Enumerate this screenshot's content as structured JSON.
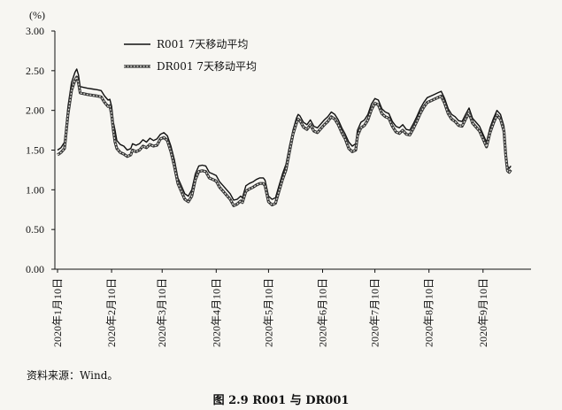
{
  "chart_data": {
    "type": "line",
    "ylabel": "(%)",
    "ylim": [
      0,
      3
    ],
    "yticks": [
      "0.00",
      "0.50",
      "1.00",
      "1.50",
      "2.00",
      "2.50",
      "3.00"
    ],
    "xticks": [
      "2020年1月10日",
      "2020年2月10日",
      "2020年3月10日",
      "2020年4月10日",
      "2020年5月10日",
      "2020年6月10日",
      "2020年7月10日",
      "2020年8月10日",
      "2020年9月10日"
    ],
    "xticks_day": [
      0,
      31,
      60,
      91,
      121,
      152,
      182,
      213,
      244
    ],
    "x_day_range": [
      0,
      270
    ],
    "legend_position": "top-left",
    "grid": false,
    "series": [
      {
        "name": "R001 7天移动平均",
        "color": "#111111",
        "points": [
          [
            0,
            1.5
          ],
          [
            2,
            1.53
          ],
          [
            4,
            1.6
          ],
          [
            6,
            2.05
          ],
          [
            8,
            2.35
          ],
          [
            10,
            2.48
          ],
          [
            11,
            2.52
          ],
          [
            12,
            2.45
          ],
          [
            13,
            2.3
          ],
          [
            15,
            2.29
          ],
          [
            17,
            2.28
          ],
          [
            20,
            2.27
          ],
          [
            23,
            2.26
          ],
          [
            25,
            2.25
          ],
          [
            27,
            2.18
          ],
          [
            29,
            2.13
          ],
          [
            30,
            2.14
          ],
          [
            31,
            2.05
          ],
          [
            32,
            1.85
          ],
          [
            33,
            1.75
          ],
          [
            34,
            1.62
          ],
          [
            36,
            1.57
          ],
          [
            38,
            1.55
          ],
          [
            40,
            1.5
          ],
          [
            42,
            1.52
          ],
          [
            43,
            1.58
          ],
          [
            45,
            1.56
          ],
          [
            47,
            1.58
          ],
          [
            49,
            1.63
          ],
          [
            51,
            1.6
          ],
          [
            53,
            1.65
          ],
          [
            55,
            1.62
          ],
          [
            57,
            1.64
          ],
          [
            59,
            1.7
          ],
          [
            61,
            1.72
          ],
          [
            63,
            1.68
          ],
          [
            65,
            1.55
          ],
          [
            67,
            1.38
          ],
          [
            69,
            1.15
          ],
          [
            71,
            1.05
          ],
          [
            73,
            0.95
          ],
          [
            75,
            0.92
          ],
          [
            77,
            1.0
          ],
          [
            79,
            1.2
          ],
          [
            81,
            1.3
          ],
          [
            83,
            1.31
          ],
          [
            85,
            1.3
          ],
          [
            87,
            1.22
          ],
          [
            89,
            1.2
          ],
          [
            91,
            1.18
          ],
          [
            93,
            1.1
          ],
          [
            95,
            1.05
          ],
          [
            97,
            1.0
          ],
          [
            99,
            0.95
          ],
          [
            101,
            0.87
          ],
          [
            103,
            0.88
          ],
          [
            105,
            0.92
          ],
          [
            106,
            0.9
          ],
          [
            108,
            1.05
          ],
          [
            110,
            1.08
          ],
          [
            112,
            1.1
          ],
          [
            114,
            1.13
          ],
          [
            116,
            1.15
          ],
          [
            118,
            1.15
          ],
          [
            119,
            1.12
          ],
          [
            121,
            0.92
          ],
          [
            123,
            0.88
          ],
          [
            125,
            0.9
          ],
          [
            127,
            1.05
          ],
          [
            129,
            1.2
          ],
          [
            131,
            1.32
          ],
          [
            133,
            1.55
          ],
          [
            135,
            1.75
          ],
          [
            137,
            1.9
          ],
          [
            138,
            1.95
          ],
          [
            139,
            1.93
          ],
          [
            141,
            1.85
          ],
          [
            143,
            1.82
          ],
          [
            145,
            1.88
          ],
          [
            147,
            1.8
          ],
          [
            149,
            1.78
          ],
          [
            151,
            1.83
          ],
          [
            153,
            1.88
          ],
          [
            155,
            1.92
          ],
          [
            157,
            1.98
          ],
          [
            159,
            1.95
          ],
          [
            161,
            1.88
          ],
          [
            163,
            1.78
          ],
          [
            165,
            1.7
          ],
          [
            167,
            1.6
          ],
          [
            169,
            1.55
          ],
          [
            171,
            1.58
          ],
          [
            172,
            1.75
          ],
          [
            174,
            1.85
          ],
          [
            176,
            1.88
          ],
          [
            178,
            1.95
          ],
          [
            180,
            2.08
          ],
          [
            182,
            2.15
          ],
          [
            184,
            2.13
          ],
          [
            186,
            2.02
          ],
          [
            188,
            1.98
          ],
          [
            190,
            1.96
          ],
          [
            192,
            1.86
          ],
          [
            194,
            1.8
          ],
          [
            196,
            1.78
          ],
          [
            198,
            1.82
          ],
          [
            200,
            1.76
          ],
          [
            202,
            1.75
          ],
          [
            204,
            1.83
          ],
          [
            206,
            1.92
          ],
          [
            208,
            2.02
          ],
          [
            210,
            2.1
          ],
          [
            212,
            2.16
          ],
          [
            214,
            2.18
          ],
          [
            216,
            2.2
          ],
          [
            218,
            2.22
          ],
          [
            220,
            2.24
          ],
          [
            222,
            2.15
          ],
          [
            224,
            2.02
          ],
          [
            226,
            1.95
          ],
          [
            228,
            1.92
          ],
          [
            230,
            1.87
          ],
          [
            232,
            1.86
          ],
          [
            234,
            1.95
          ],
          [
            236,
            2.03
          ],
          [
            238,
            1.9
          ],
          [
            240,
            1.85
          ],
          [
            242,
            1.8
          ],
          [
            244,
            1.7
          ],
          [
            246,
            1.6
          ],
          [
            248,
            1.78
          ],
          [
            250,
            1.9
          ],
          [
            252,
            2.0
          ],
          [
            254,
            1.95
          ],
          [
            256,
            1.8
          ],
          [
            257,
            1.5
          ],
          [
            258,
            1.3
          ],
          [
            259,
            1.27
          ],
          [
            260,
            1.3
          ]
        ]
      },
      {
        "name": "DR001 7天移动平均",
        "color": "#333333",
        "dashed": true,
        "points": [
          [
            0,
            1.44
          ],
          [
            2,
            1.47
          ],
          [
            4,
            1.52
          ],
          [
            6,
            1.95
          ],
          [
            8,
            2.25
          ],
          [
            10,
            2.38
          ],
          [
            11,
            2.42
          ],
          [
            12,
            2.35
          ],
          [
            13,
            2.22
          ],
          [
            15,
            2.21
          ],
          [
            17,
            2.2
          ],
          [
            20,
            2.19
          ],
          [
            23,
            2.18
          ],
          [
            25,
            2.17
          ],
          [
            27,
            2.1
          ],
          [
            29,
            2.05
          ],
          [
            30,
            2.06
          ],
          [
            31,
            1.95
          ],
          [
            32,
            1.75
          ],
          [
            33,
            1.6
          ],
          [
            34,
            1.52
          ],
          [
            36,
            1.47
          ],
          [
            38,
            1.45
          ],
          [
            40,
            1.42
          ],
          [
            42,
            1.44
          ],
          [
            43,
            1.5
          ],
          [
            45,
            1.48
          ],
          [
            47,
            1.5
          ],
          [
            49,
            1.55
          ],
          [
            51,
            1.53
          ],
          [
            53,
            1.57
          ],
          [
            55,
            1.55
          ],
          [
            57,
            1.56
          ],
          [
            59,
            1.64
          ],
          [
            61,
            1.66
          ],
          [
            63,
            1.62
          ],
          [
            65,
            1.48
          ],
          [
            67,
            1.3
          ],
          [
            69,
            1.08
          ],
          [
            71,
            0.98
          ],
          [
            73,
            0.88
          ],
          [
            75,
            0.85
          ],
          [
            77,
            0.92
          ],
          [
            79,
            1.13
          ],
          [
            81,
            1.23
          ],
          [
            83,
            1.24
          ],
          [
            85,
            1.23
          ],
          [
            87,
            1.15
          ],
          [
            89,
            1.13
          ],
          [
            91,
            1.11
          ],
          [
            93,
            1.03
          ],
          [
            95,
            0.98
          ],
          [
            97,
            0.93
          ],
          [
            99,
            0.88
          ],
          [
            101,
            0.8
          ],
          [
            103,
            0.82
          ],
          [
            105,
            0.86
          ],
          [
            106,
            0.84
          ],
          [
            108,
            0.98
          ],
          [
            110,
            1.01
          ],
          [
            112,
            1.03
          ],
          [
            114,
            1.06
          ],
          [
            116,
            1.08
          ],
          [
            118,
            1.08
          ],
          [
            119,
            1.05
          ],
          [
            121,
            0.85
          ],
          [
            123,
            0.81
          ],
          [
            125,
            0.83
          ],
          [
            127,
            0.98
          ],
          [
            129,
            1.13
          ],
          [
            131,
            1.25
          ],
          [
            133,
            1.48
          ],
          [
            135,
            1.7
          ],
          [
            137,
            1.84
          ],
          [
            138,
            1.89
          ],
          [
            139,
            1.87
          ],
          [
            141,
            1.79
          ],
          [
            143,
            1.76
          ],
          [
            145,
            1.82
          ],
          [
            147,
            1.74
          ],
          [
            149,
            1.72
          ],
          [
            151,
            1.77
          ],
          [
            153,
            1.82
          ],
          [
            155,
            1.86
          ],
          [
            157,
            1.92
          ],
          [
            159,
            1.89
          ],
          [
            161,
            1.82
          ],
          [
            163,
            1.72
          ],
          [
            165,
            1.64
          ],
          [
            167,
            1.52
          ],
          [
            169,
            1.48
          ],
          [
            171,
            1.5
          ],
          [
            172,
            1.68
          ],
          [
            174,
            1.78
          ],
          [
            176,
            1.81
          ],
          [
            178,
            1.88
          ],
          [
            180,
            2.01
          ],
          [
            182,
            2.09
          ],
          [
            184,
            2.07
          ],
          [
            186,
            1.96
          ],
          [
            188,
            1.92
          ],
          [
            190,
            1.9
          ],
          [
            192,
            1.8
          ],
          [
            194,
            1.73
          ],
          [
            196,
            1.71
          ],
          [
            198,
            1.75
          ],
          [
            200,
            1.7
          ],
          [
            202,
            1.69
          ],
          [
            204,
            1.77
          ],
          [
            206,
            1.86
          ],
          [
            208,
            1.96
          ],
          [
            210,
            2.04
          ],
          [
            212,
            2.1
          ],
          [
            214,
            2.12
          ],
          [
            216,
            2.14
          ],
          [
            218,
            2.16
          ],
          [
            220,
            2.18
          ],
          [
            222,
            2.09
          ],
          [
            224,
            1.96
          ],
          [
            226,
            1.89
          ],
          [
            228,
            1.86
          ],
          [
            230,
            1.81
          ],
          [
            232,
            1.8
          ],
          [
            234,
            1.89
          ],
          [
            236,
            1.97
          ],
          [
            238,
            1.84
          ],
          [
            240,
            1.79
          ],
          [
            242,
            1.74
          ],
          [
            244,
            1.64
          ],
          [
            246,
            1.54
          ],
          [
            248,
            1.72
          ],
          [
            250,
            1.84
          ],
          [
            252,
            1.94
          ],
          [
            254,
            1.89
          ],
          [
            256,
            1.74
          ],
          [
            257,
            1.44
          ],
          [
            258,
            1.24
          ],
          [
            259,
            1.22
          ],
          [
            260,
            1.25
          ]
        ]
      }
    ]
  },
  "source_note": "资料来源：Wind。",
  "caption": "图 2.9    R001 与 DR001"
}
